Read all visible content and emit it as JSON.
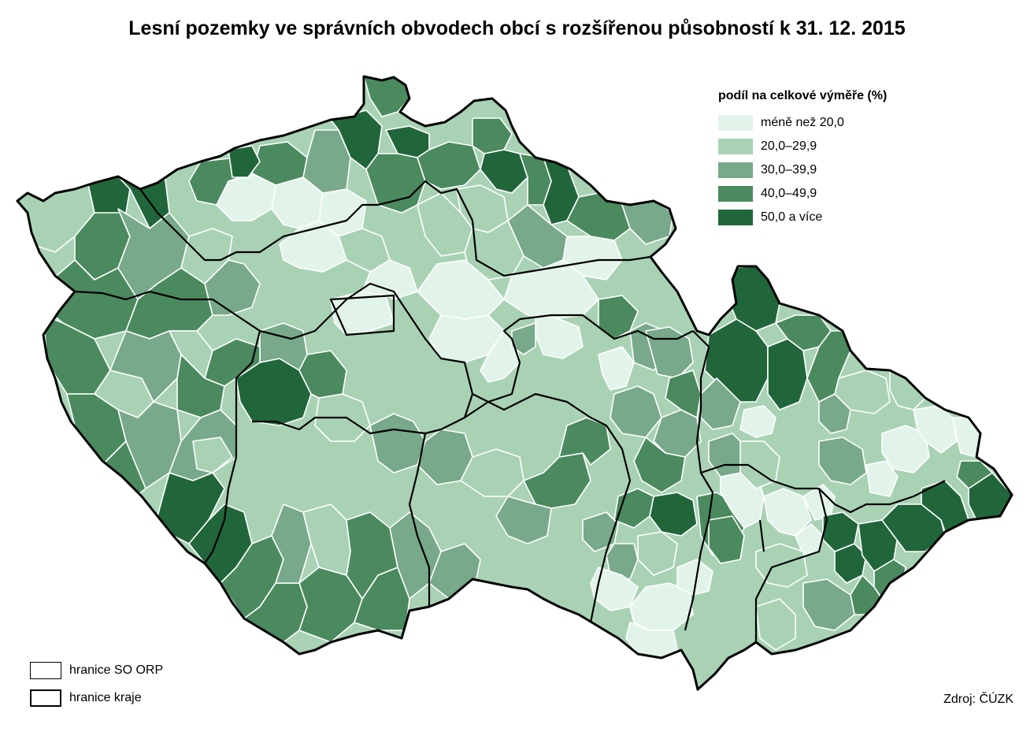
{
  "title": "Lesní pozemky ve správních obvodech obcí s rozšířenou působností k 31. 12. 2015",
  "legend": {
    "title": "podíl na celkové výměře (%)",
    "classes": [
      {
        "label": "méně než 20,0",
        "color": "#e2f4e9"
      },
      {
        "label": "20,0–29,9",
        "color": "#a9d2b5"
      },
      {
        "label": "30,0–39,9",
        "color": "#78a98a"
      },
      {
        "label": "40,0–49,9",
        "color": "#4b8a5e"
      },
      {
        "label": "50,0 a více",
        "color": "#21663a"
      }
    ]
  },
  "boundary_legend": [
    {
      "label": "hranice SO ORP",
      "style": "thin"
    },
    {
      "label": "hranice kraje",
      "style": "thick"
    }
  ],
  "source": "Zdroj: ČÚZK"
}
